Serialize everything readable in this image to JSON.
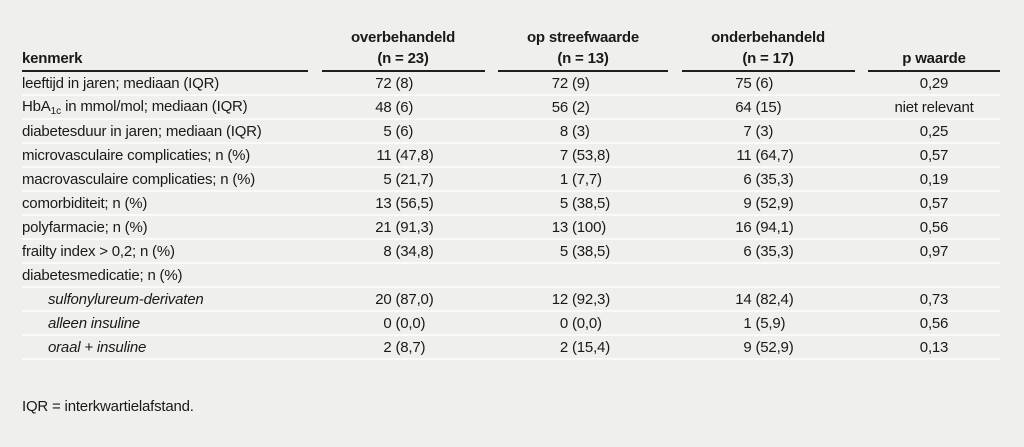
{
  "colors": {
    "background": "#efefed",
    "row_separator": "#fbfbfa",
    "header_rule": "#1f1f1f",
    "text": "#1a1a1a"
  },
  "table": {
    "header": {
      "kenmerk_label": "kenmerk",
      "group1_line1": "overbehandeld",
      "group1_line2": "(n = 23)",
      "group2_line1": "op streefwaarde",
      "group2_line2": "(n = 13)",
      "group3_line1": "onderbehandeld",
      "group3_line2": "(n = 17)",
      "p_label": "p waarde"
    },
    "rows": [
      {
        "label": "leeftijd in jaren; mediaan (IQR)",
        "c1": {
          "n": "72",
          "p": "(8)"
        },
        "c2": {
          "n": "72",
          "p": "(9)"
        },
        "c3": {
          "n": "75",
          "p": "(6)"
        },
        "pv": "0,29"
      },
      {
        "label_pre": "HbA",
        "label_sub": "1c",
        "label_post": " in mmol/mol; mediaan (IQR)",
        "c1": {
          "n": "48",
          "p": "(6)"
        },
        "c2": {
          "n": "56",
          "p": "(2)"
        },
        "c3": {
          "n": "64",
          "p": "(15)"
        },
        "pv": "niet relevant"
      },
      {
        "label": "diabetesduur in jaren; mediaan (IQR)",
        "c1": {
          "n": "5",
          "p": "(6)"
        },
        "c2": {
          "n": "8",
          "p": "(3)"
        },
        "c3": {
          "n": "7",
          "p": "(3)"
        },
        "pv": "0,25"
      },
      {
        "label": "microvasculaire complicaties; n (%)",
        "c1": {
          "n": "11",
          "p": "(47,8)"
        },
        "c2": {
          "n": "7",
          "p": "(53,8)"
        },
        "c3": {
          "n": "11",
          "p": "(64,7)"
        },
        "pv": "0,57"
      },
      {
        "label": "macrovasculaire complicaties; n (%)",
        "c1": {
          "n": "5",
          "p": "(21,7)"
        },
        "c2": {
          "n": "1",
          "p": "(7,7)"
        },
        "c3": {
          "n": "6",
          "p": "(35,3)"
        },
        "pv": "0,19"
      },
      {
        "label": "comorbiditeit; n (%)",
        "c1": {
          "n": "13",
          "p": "(56,5)"
        },
        "c2": {
          "n": "5",
          "p": "(38,5)"
        },
        "c3": {
          "n": "9",
          "p": "(52,9)"
        },
        "pv": "0,57"
      },
      {
        "label": "polyfarmacie; n (%)",
        "c1": {
          "n": "21",
          "p": "(91,3)"
        },
        "c2": {
          "n": "13",
          "p": "(100)"
        },
        "c3": {
          "n": "16",
          "p": "(94,1)"
        },
        "pv": "0,56"
      },
      {
        "label": "frailty index > 0,2; n (%)",
        "c1": {
          "n": "8",
          "p": "(34,8)"
        },
        "c2": {
          "n": "5",
          "p": "(38,5)"
        },
        "c3": {
          "n": "6",
          "p": "(35,3)"
        },
        "pv": "0,97"
      },
      {
        "label": "diabetesmedicatie; n (%)",
        "c1": {
          "n": "",
          "p": ""
        },
        "c2": {
          "n": "",
          "p": ""
        },
        "c3": {
          "n": "",
          "p": ""
        },
        "pv": ""
      },
      {
        "label": "sulfonylureum-derivaten",
        "italic_indent": true,
        "c1": {
          "n": "20",
          "p": "(87,0)"
        },
        "c2": {
          "n": "12",
          "p": "(92,3)"
        },
        "c3": {
          "n": "14",
          "p": "(82,4)"
        },
        "pv": "0,73"
      },
      {
        "label": "alleen insuline",
        "italic_indent": true,
        "c1": {
          "n": "0",
          "p": "(0,0)"
        },
        "c2": {
          "n": "0",
          "p": "(0,0)"
        },
        "c3": {
          "n": "1",
          "p": "(5,9)"
        },
        "pv": "0,56"
      },
      {
        "label": "oraal + insuline",
        "italic_indent": true,
        "c1": {
          "n": "2",
          "p": "(8,7)"
        },
        "c2": {
          "n": "2",
          "p": "(15,4)"
        },
        "c3": {
          "n": "9",
          "p": "(52,9)"
        },
        "pv": "0,13"
      }
    ],
    "footnote": "IQR = interkwartielafstand."
  }
}
